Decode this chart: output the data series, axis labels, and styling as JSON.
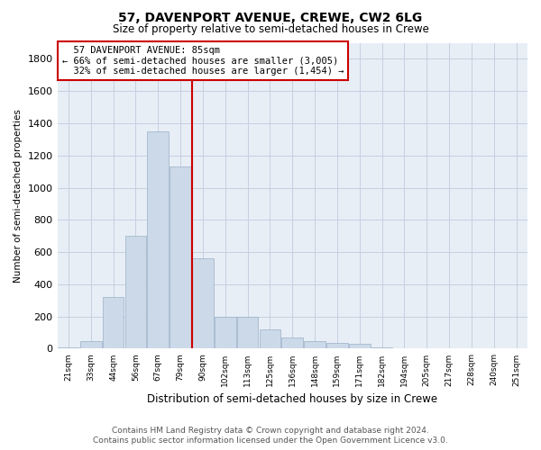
{
  "title": "57, DAVENPORT AVENUE, CREWE, CW2 6LG",
  "subtitle": "Size of property relative to semi-detached houses in Crewe",
  "xlabel": "Distribution of semi-detached houses by size in Crewe",
  "ylabel": "Number of semi-detached properties",
  "property_label": "57 DAVENPORT AVENUE: 85sqm",
  "pct_smaller": 66,
  "count_smaller": 3005,
  "pct_larger": 32,
  "count_larger": 1454,
  "bar_color": "#ccd9e8",
  "bar_edge_color": "#9bb0c8",
  "highlight_line_color": "#cc0000",
  "annotation_box_color": "#cc0000",
  "grid_color": "#c5d0e0",
  "background_color": "#e8eef6",
  "categories": [
    "21sqm",
    "33sqm",
    "44sqm",
    "56sqm",
    "67sqm",
    "79sqm",
    "90sqm",
    "102sqm",
    "113sqm",
    "125sqm",
    "136sqm",
    "148sqm",
    "159sqm",
    "171sqm",
    "182sqm",
    "194sqm",
    "205sqm",
    "217sqm",
    "228sqm",
    "240sqm",
    "251sqm"
  ],
  "values": [
    8,
    45,
    320,
    700,
    1350,
    1130,
    560,
    200,
    200,
    120,
    70,
    45,
    35,
    28,
    8,
    4,
    3,
    2,
    1,
    1,
    1
  ],
  "ylim": [
    0,
    1900
  ],
  "yticks": [
    0,
    200,
    400,
    600,
    800,
    1000,
    1200,
    1400,
    1600,
    1800
  ],
  "property_bin_index": 5,
  "footer_line1": "Contains HM Land Registry data © Crown copyright and database right 2024.",
  "footer_line2": "Contains public sector information licensed under the Open Government Licence v3.0."
}
